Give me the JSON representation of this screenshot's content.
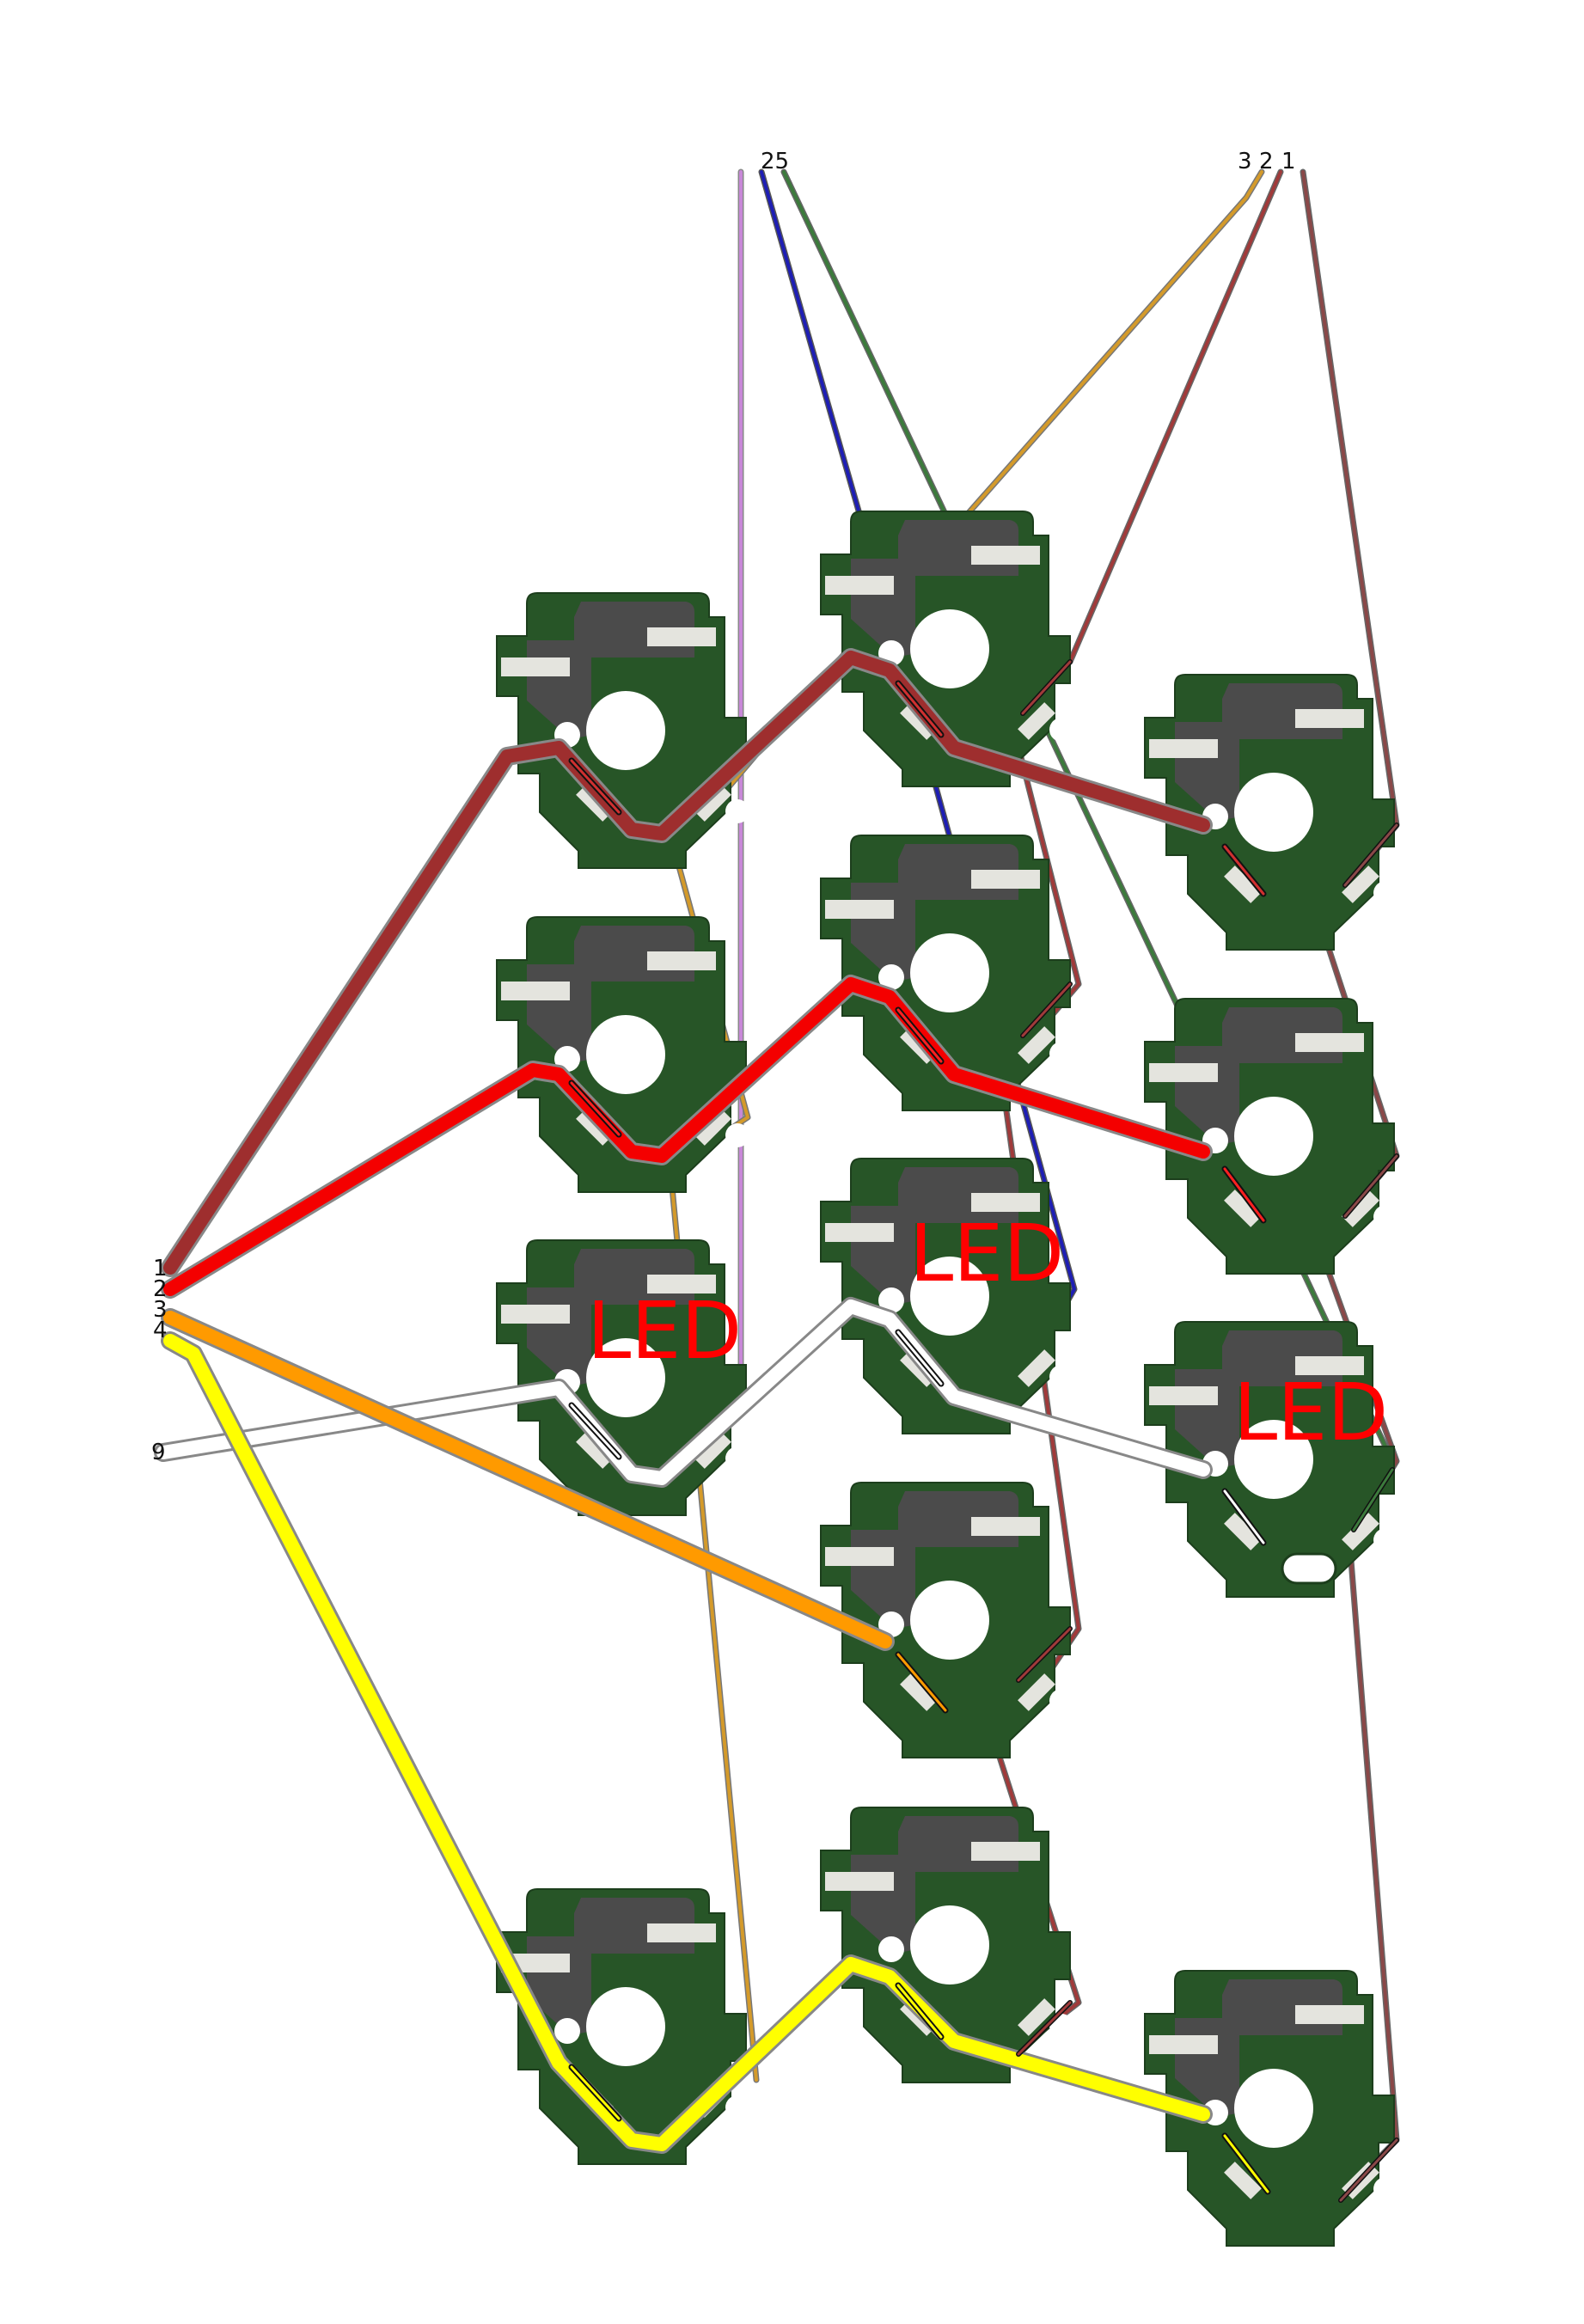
{
  "colors": {
    "board": "#275527",
    "board_outline": "#1c3e1c",
    "switch_body": "#4b4b4b",
    "pad": "#e4e4de",
    "hole": "#ffffff",
    "led_text": "#ff0000",
    "wire_brown": "#9e2e2e",
    "wire_red": "#f40000",
    "wire_orange": "#ff9a00",
    "wire_white": "#ffffff",
    "wire_yellow": "#ffff00",
    "wire_violet": "#c888d8",
    "wire_blue": "#1e1eb4",
    "wire_green": "#3c7a3c",
    "wire_gold": "#d49a2a",
    "wire_darkred": "#a03a3a",
    "wire_maroon": "#8a4848"
  },
  "left_header": {
    "pins": [
      "1",
      "2",
      "3",
      "4",
      "9"
    ]
  },
  "top_header": {
    "left_label": "25",
    "right_labels": [
      "3",
      "2",
      "1"
    ]
  },
  "led_labels": [
    "LED",
    "LED",
    "LED"
  ]
}
